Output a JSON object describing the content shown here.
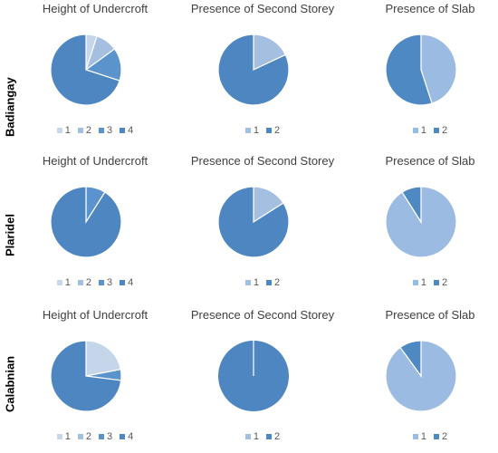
{
  "colors": {
    "c1": "#c5d5ea",
    "c2": "#a5bfe0",
    "c3": "#5b93cc",
    "c4": "#4d86c1",
    "slab1": "#9bbbe3",
    "slab2": "#4e89c4"
  },
  "chart_data": [
    {
      "type": "pie",
      "location": "Badiangay",
      "title": "Height of Undercroft",
      "labels": [
        "1",
        "2",
        "3",
        "4"
      ],
      "values": [
        5,
        10,
        15,
        70
      ],
      "colors": [
        "#c5d5ea",
        "#a5bfe0",
        "#5b93cc",
        "#4d86c1"
      ]
    },
    {
      "type": "pie",
      "location": "Badiangay",
      "title": "Presence of Second Storey",
      "labels": [
        "1",
        "2"
      ],
      "values": [
        18,
        82
      ],
      "colors": [
        "#a5bfe0",
        "#4d86c1"
      ]
    },
    {
      "type": "pie",
      "location": "Badiangay",
      "title": "Presence of Slab",
      "labels": [
        "1",
        "2"
      ],
      "values": [
        45,
        55
      ],
      "colors": [
        "#9bbbe3",
        "#4e89c4"
      ]
    },
    {
      "type": "pie",
      "location": "Plaridel",
      "title": "Height of Undercroft",
      "labels": [
        "1",
        "2",
        "3",
        "4"
      ],
      "values": [
        0,
        0,
        9,
        91
      ],
      "colors": [
        "#c5d5ea",
        "#a5bfe0",
        "#5b93cc",
        "#4d86c1"
      ]
    },
    {
      "type": "pie",
      "location": "Plaridel",
      "title": "Presence of Second Storey",
      "labels": [
        "1",
        "2"
      ],
      "values": [
        16,
        84
      ],
      "colors": [
        "#a5bfe0",
        "#4d86c1"
      ]
    },
    {
      "type": "pie",
      "location": "Plaridel",
      "title": "Presence of Slab",
      "labels": [
        "1",
        "2"
      ],
      "values": [
        91,
        9
      ],
      "colors": [
        "#9bbbe3",
        "#4e89c4"
      ]
    },
    {
      "type": "pie",
      "location": "Calabnian",
      "title": "Height of Undercroft",
      "labels": [
        "1",
        "2",
        "3",
        "4"
      ],
      "values": [
        22,
        0,
        5,
        73
      ],
      "colors": [
        "#c5d5ea",
        "#a5bfe0",
        "#5b93cc",
        "#4d86c1"
      ]
    },
    {
      "type": "pie",
      "location": "Calabnian",
      "title": "Presence of Second Storey",
      "labels": [
        "1",
        "2"
      ],
      "values": [
        0,
        100
      ],
      "colors": [
        "#a5bfe0",
        "#4d86c1"
      ]
    },
    {
      "type": "pie",
      "location": "Calabnian",
      "title": "Presence of Slab",
      "labels": [
        "1",
        "2"
      ],
      "values": [
        90,
        10
      ],
      "colors": [
        "#9bbbe3",
        "#4e89c4"
      ]
    }
  ],
  "rows": [
    "Badiangay",
    "Plaridel",
    "Calabnian"
  ]
}
